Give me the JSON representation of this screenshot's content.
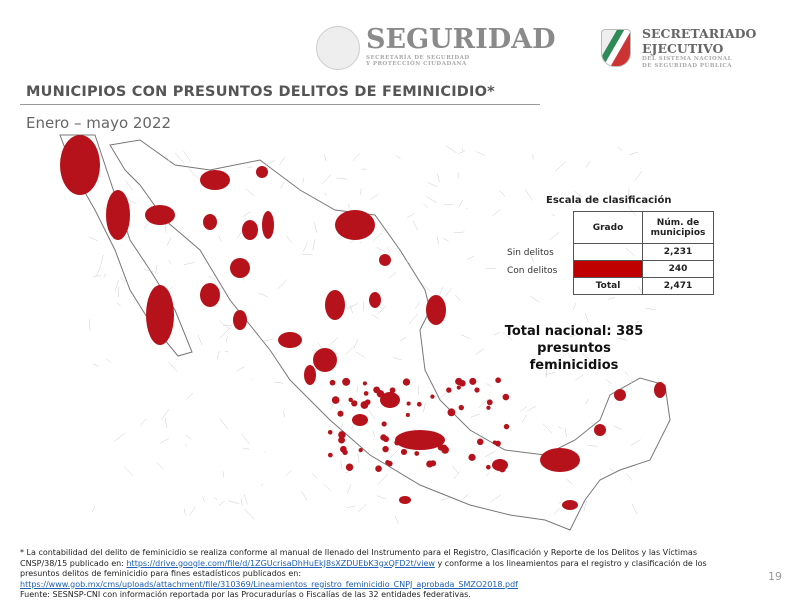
{
  "header": {
    "seguridad": "SEGURIDAD",
    "seguridad_sub1": "SECRETARÍA DE SEGURIDAD",
    "seguridad_sub2": "Y PROTECCIÓN CIUDADANA",
    "sec_line1": "SECRETARIADO",
    "sec_line2": "EJECUTIVO",
    "sec_sub1": "DEL SISTEMA NACIONAL",
    "sec_sub2": "DE SEGURIDAD PÚBLICA"
  },
  "title": "MUNICIPIOS CON PRESUNTOS DELITOS DE FEMINICIDIO*",
  "subtitle": "Enero – mayo 2022",
  "scale": {
    "title": "Escala de clasificación",
    "col_grado": "Grado",
    "col_num": "Núm. de municipios",
    "rows": [
      {
        "label": "Sin delitos",
        "color": "#ffffff",
        "value": "2,231"
      },
      {
        "label": "Con delitos",
        "color": "#c00000",
        "value": "240"
      }
    ],
    "total_label": "Total",
    "total_value": "2,471"
  },
  "total_nacional": {
    "line1": "Total nacional: 385",
    "line2": "presuntos feminicidios"
  },
  "colors": {
    "con_delitos": "#b5121b",
    "sin_delitos": "#ffffff"
  },
  "footnote": {
    "p1": "* La contabilidad del delito de feminicidio se realiza conforme al manual de llenado del Instrumento para el Registro, Clasificación y Reporte de los Delitos y las Víctimas CNSP/38/15 publicado en: ",
    "link1": "https://drive.google.com/file/d/1ZGUcrisaDhHuEkJ8sXZDUEbK3gxQFD2t/view",
    "p2": " y conforme a los lineamientos para el registro y clasificación de los presuntos delitos de feminicidio para fines estadísticos publicados en:",
    "link2": "https://www.gob.mx/cms/uploads/attachment/file/310369/Lineamientos_registro_feminicidio_CNPJ_aprobada_SMZO2018.pdf",
    "source": "Fuente: SESNSP-CNI con información reportada por las Procuradurías o Fiscalías de las 32 entidades federativas."
  },
  "page_number": "19"
}
